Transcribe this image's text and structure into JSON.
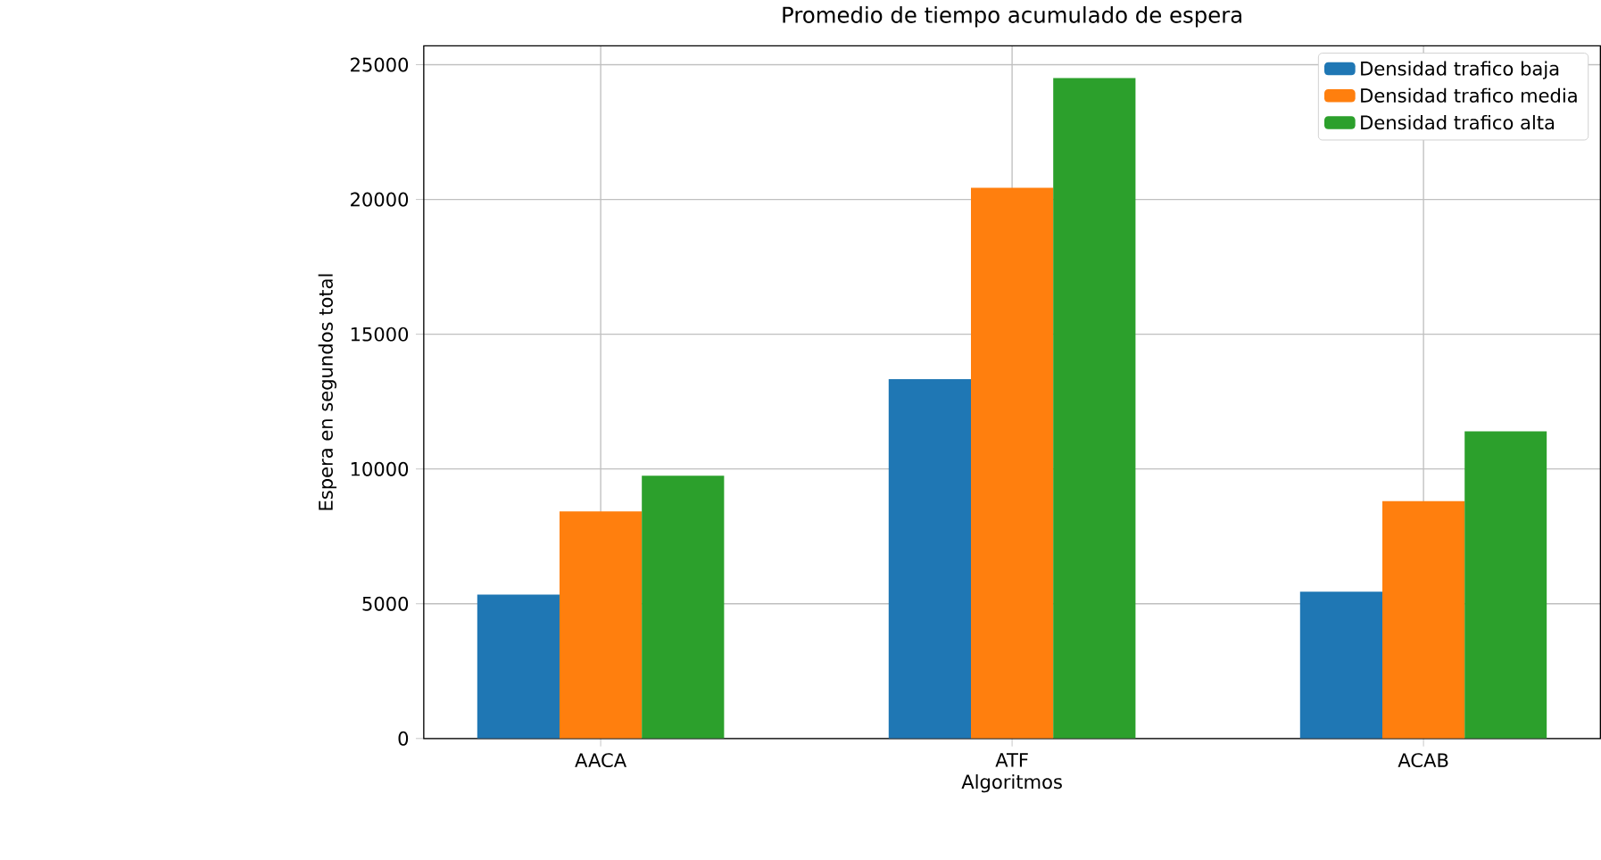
{
  "chart_data": {
    "type": "bar",
    "title": "Promedio de tiempo acumulado de espera",
    "xlabel": "Algoritmos",
    "ylabel": "Espera en segundos total",
    "categories": [
      "AACA",
      "ATF",
      "ACAB"
    ],
    "series": [
      {
        "name": "Densidad trafico baja",
        "color": "#1f77b4",
        "values": [
          5340,
          13330,
          5450
        ]
      },
      {
        "name": "Densidad trafico media",
        "color": "#ff7f0e",
        "values": [
          8430,
          20430,
          8810
        ]
      },
      {
        "name": "Densidad trafico alta",
        "color": "#2ca02c",
        "values": [
          9750,
          24500,
          11400
        ]
      }
    ],
    "ylim": [
      0,
      25700
    ],
    "yticks": [
      0,
      5000,
      10000,
      15000,
      20000,
      25000
    ],
    "grid": true,
    "legend": "top right"
  }
}
